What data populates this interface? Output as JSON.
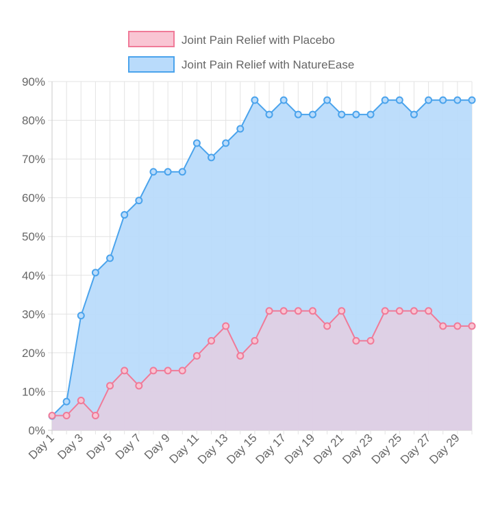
{
  "chart_data": {
    "type": "area",
    "title": "",
    "xlabel": "",
    "ylabel": "",
    "ylim": [
      0,
      90
    ],
    "y_ticks": [
      "0%",
      "10%",
      "20%",
      "30%",
      "40%",
      "50%",
      "60%",
      "70%",
      "80%",
      "90%"
    ],
    "categories": [
      "Day 1",
      "Day 2",
      "Day 3",
      "Day 4",
      "Day 5",
      "Day 6",
      "Day 7",
      "Day 8",
      "Day 9",
      "Day 10",
      "Day 11",
      "Day 12",
      "Day 13",
      "Day 14",
      "Day 15",
      "Day 16",
      "Day 17",
      "Day 18",
      "Day 19",
      "Day 20",
      "Day 21",
      "Day 22",
      "Day 23",
      "Day 24",
      "Day 25",
      "Day 26",
      "Day 27",
      "Day 28",
      "Day 29",
      "Day 30"
    ],
    "x_tick_labels": [
      "Day 1",
      "Day 3",
      "Day 5",
      "Day 7",
      "Day 9",
      "Day 11",
      "Day 13",
      "Day 15",
      "Day 17",
      "Day 19",
      "Day 21",
      "Day 23",
      "Day 25",
      "Day 27",
      "Day 29"
    ],
    "grid": true,
    "legend_position": "top",
    "series": [
      {
        "name": "Joint Pain Relief with Placebo",
        "line_color": "#f07a98",
        "fill_color": "#f9c5d3",
        "values": [
          3.8,
          3.8,
          7.7,
          3.8,
          11.5,
          15.4,
          11.5,
          15.4,
          15.4,
          15.4,
          19.2,
          23.1,
          26.9,
          19.2,
          23.1,
          30.8,
          30.8,
          30.8,
          30.8,
          26.9,
          30.8,
          23.1,
          23.1,
          30.8,
          30.8,
          30.8,
          30.8,
          26.9,
          26.9,
          26.9
        ]
      },
      {
        "name": "Joint Pain Relief with NatureEase",
        "line_color": "#4aa3ec",
        "fill_color": "#b9dbfb",
        "values": [
          3.7,
          7.4,
          29.6,
          40.7,
          44.4,
          55.6,
          59.3,
          66.7,
          66.7,
          66.7,
          74.1,
          70.4,
          74.1,
          77.8,
          85.2,
          81.5,
          85.2,
          81.5,
          81.5,
          85.2,
          81.5,
          81.5,
          81.5,
          85.2,
          85.2,
          81.5,
          85.2,
          85.2,
          85.2,
          85.2
        ]
      }
    ]
  }
}
